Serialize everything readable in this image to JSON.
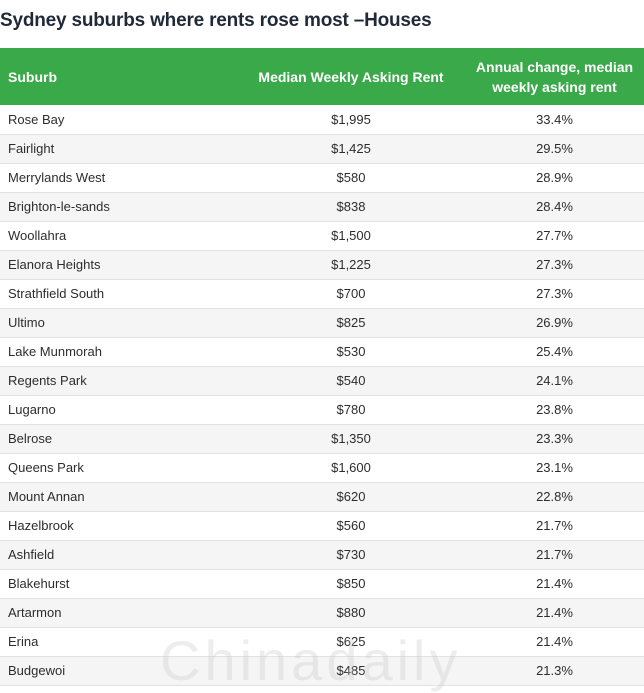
{
  "title": "Sydney suburbs where rents rose most –Houses",
  "columns": {
    "suburb": "Suburb",
    "rent": "Median Weekly Asking Rent",
    "change_line1": "Annual change, median",
    "change_line2": "weekly asking rent"
  },
  "rows": [
    {
      "suburb": "Rose Bay",
      "rent": "$1,995",
      "change": "33.4%"
    },
    {
      "suburb": "Fairlight",
      "rent": "$1,425",
      "change": "29.5%"
    },
    {
      "suburb": "Merrylands West",
      "rent": "$580",
      "change": "28.9%"
    },
    {
      "suburb": "Brighton-le-sands",
      "rent": "$838",
      "change": "28.4%"
    },
    {
      "suburb": "Woollahra",
      "rent": "$1,500",
      "change": "27.7%"
    },
    {
      "suburb": "Elanora Heights",
      "rent": "$1,225",
      "change": "27.3%"
    },
    {
      "suburb": "Strathfield South",
      "rent": "$700",
      "change": "27.3%"
    },
    {
      "suburb": "Ultimo",
      "rent": "$825",
      "change": "26.9%"
    },
    {
      "suburb": "Lake Munmorah",
      "rent": "$530",
      "change": "25.4%"
    },
    {
      "suburb": "Regents Park",
      "rent": "$540",
      "change": "24.1%"
    },
    {
      "suburb": "Lugarno",
      "rent": "$780",
      "change": "23.8%"
    },
    {
      "suburb": "Belrose",
      "rent": "$1,350",
      "change": "23.3%"
    },
    {
      "suburb": "Queens Park",
      "rent": "$1,600",
      "change": "23.1%"
    },
    {
      "suburb": "Mount Annan",
      "rent": "$620",
      "change": "22.8%"
    },
    {
      "suburb": "Hazelbrook",
      "rent": "$560",
      "change": "21.7%"
    },
    {
      "suburb": "Ashfield",
      "rent": "$730",
      "change": "21.7%"
    },
    {
      "suburb": "Blakehurst",
      "rent": "$850",
      "change": "21.4%"
    },
    {
      "suburb": "Artarmon",
      "rent": "$880",
      "change": "21.4%"
    },
    {
      "suburb": "Erina",
      "rent": "$625",
      "change": "21.4%"
    },
    {
      "suburb": "Budgewoi",
      "rent": "$485",
      "change": "21.3%"
    }
  ],
  "watermark": "Chinadaily",
  "colors": {
    "header_bg": "#3aa94a",
    "header_text": "#ffffff",
    "stripe": "#f5f5f5"
  }
}
